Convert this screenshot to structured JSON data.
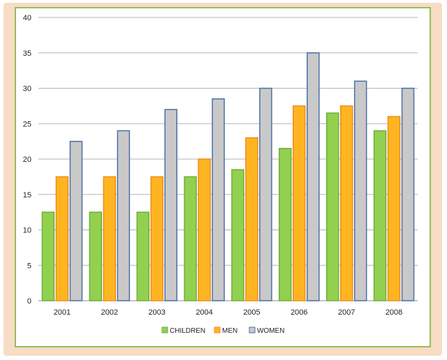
{
  "chart_data": {
    "type": "bar",
    "categories": [
      "2001",
      "2002",
      "2003",
      "2004",
      "2005",
      "2006",
      "2007",
      "2008"
    ],
    "series": [
      {
        "name": "CHILDREN",
        "color": "#92d050",
        "stroke": "#6fae3a",
        "values": [
          12.5,
          12.5,
          12.5,
          17.5,
          18.5,
          21.5,
          26.5,
          24
        ]
      },
      {
        "name": "MEN",
        "color": "#ffb521",
        "stroke": "#f08a1c",
        "values": [
          17.5,
          17.5,
          17.5,
          20,
          23,
          27.5,
          27.5,
          26
        ]
      },
      {
        "name": "WOMEN",
        "color": "#c9c9c9",
        "stroke": "#4a6fa5",
        "values": [
          22.5,
          24,
          27,
          28.5,
          30,
          35,
          31,
          30
        ]
      }
    ],
    "yticks": [
      "0",
      "5",
      "10",
      "15",
      "20",
      "25",
      "30",
      "35",
      "40"
    ],
    "ylim": [
      0,
      40
    ],
    "grid": true,
    "legend_position": "bottom",
    "border_color": "#9bbb59",
    "background_color": "#f7dcc6"
  }
}
